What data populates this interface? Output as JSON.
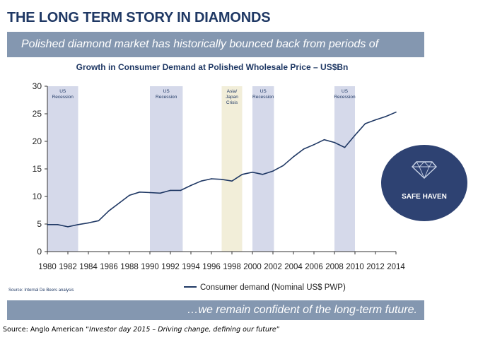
{
  "slide": {
    "title": "THE LONG TERM STORY IN DIAMONDS",
    "top_banner": "Polished diamond market has historically bounced back from periods of weakness…",
    "bottom_banner": "…we remain confident of the long-term future.",
    "chart_source": "Source: Internal De Beers analysis",
    "badge_label": "SAFE HAVEN",
    "footer_prefix": "Source: Anglo American “",
    "footer_italic": "Investor day 2015 – Driving change, defining our future",
    "footer_suffix": "”"
  },
  "colors": {
    "title": "#1f3864",
    "banner": "#8497b0",
    "line": "#1f3864",
    "recession_band": "#d5d9ea",
    "crisis_band": "#f2eed9",
    "badge": "#2e4272"
  },
  "icons": {
    "badge_icon": "diamond-icon"
  },
  "chart_data": {
    "type": "line",
    "title": "Growth in Consumer Demand  at Polished Wholesale Price – US$Bn",
    "xlabel": "",
    "ylabel": "",
    "xlim": [
      1980,
      2014
    ],
    "ylim": [
      0,
      30
    ],
    "x_ticks": [
      1980,
      1982,
      1984,
      1986,
      1988,
      1990,
      1992,
      1994,
      1996,
      1998,
      2000,
      2002,
      2004,
      2006,
      2008,
      2010,
      2012,
      2014
    ],
    "y_ticks": [
      0,
      5,
      10,
      15,
      20,
      25,
      30
    ],
    "grid": false,
    "legend_position": "bottom-center",
    "series": [
      {
        "name": "Consumer demand (Nominal US$ PWP)",
        "x": [
          1980,
          1981,
          1982,
          1983,
          1984,
          1985,
          1986,
          1987,
          1988,
          1989,
          1990,
          1991,
          1992,
          1993,
          1994,
          1995,
          1996,
          1997,
          1998,
          1999,
          2000,
          2001,
          2002,
          2003,
          2004,
          2005,
          2006,
          2007,
          2008,
          2009,
          2010,
          2011,
          2012,
          2013,
          2014
        ],
        "values": [
          4.9,
          4.9,
          4.5,
          4.9,
          5.2,
          5.6,
          7.4,
          8.8,
          10.2,
          10.8,
          10.7,
          10.6,
          11.1,
          11.1,
          12.0,
          12.8,
          13.2,
          13.1,
          12.8,
          14.0,
          14.4,
          14.0,
          14.6,
          15.6,
          17.2,
          18.6,
          19.4,
          20.3,
          19.8,
          18.9,
          21.1,
          23.2,
          23.9,
          24.5,
          25.3
        ]
      }
    ],
    "bands": [
      {
        "label": "US Recession",
        "start": 1980,
        "end": 1983,
        "kind": "recession"
      },
      {
        "label": "US Recession",
        "start": 1990,
        "end": 1993.2,
        "kind": "recession"
      },
      {
        "label": "Asia/ Japan Crisis",
        "start": 1997,
        "end": 1999,
        "kind": "crisis"
      },
      {
        "label": "US Recession",
        "start": 2000,
        "end": 2002.1,
        "kind": "recession"
      },
      {
        "label": "US Recession",
        "start": 2008,
        "end": 2010,
        "kind": "recession"
      }
    ]
  }
}
